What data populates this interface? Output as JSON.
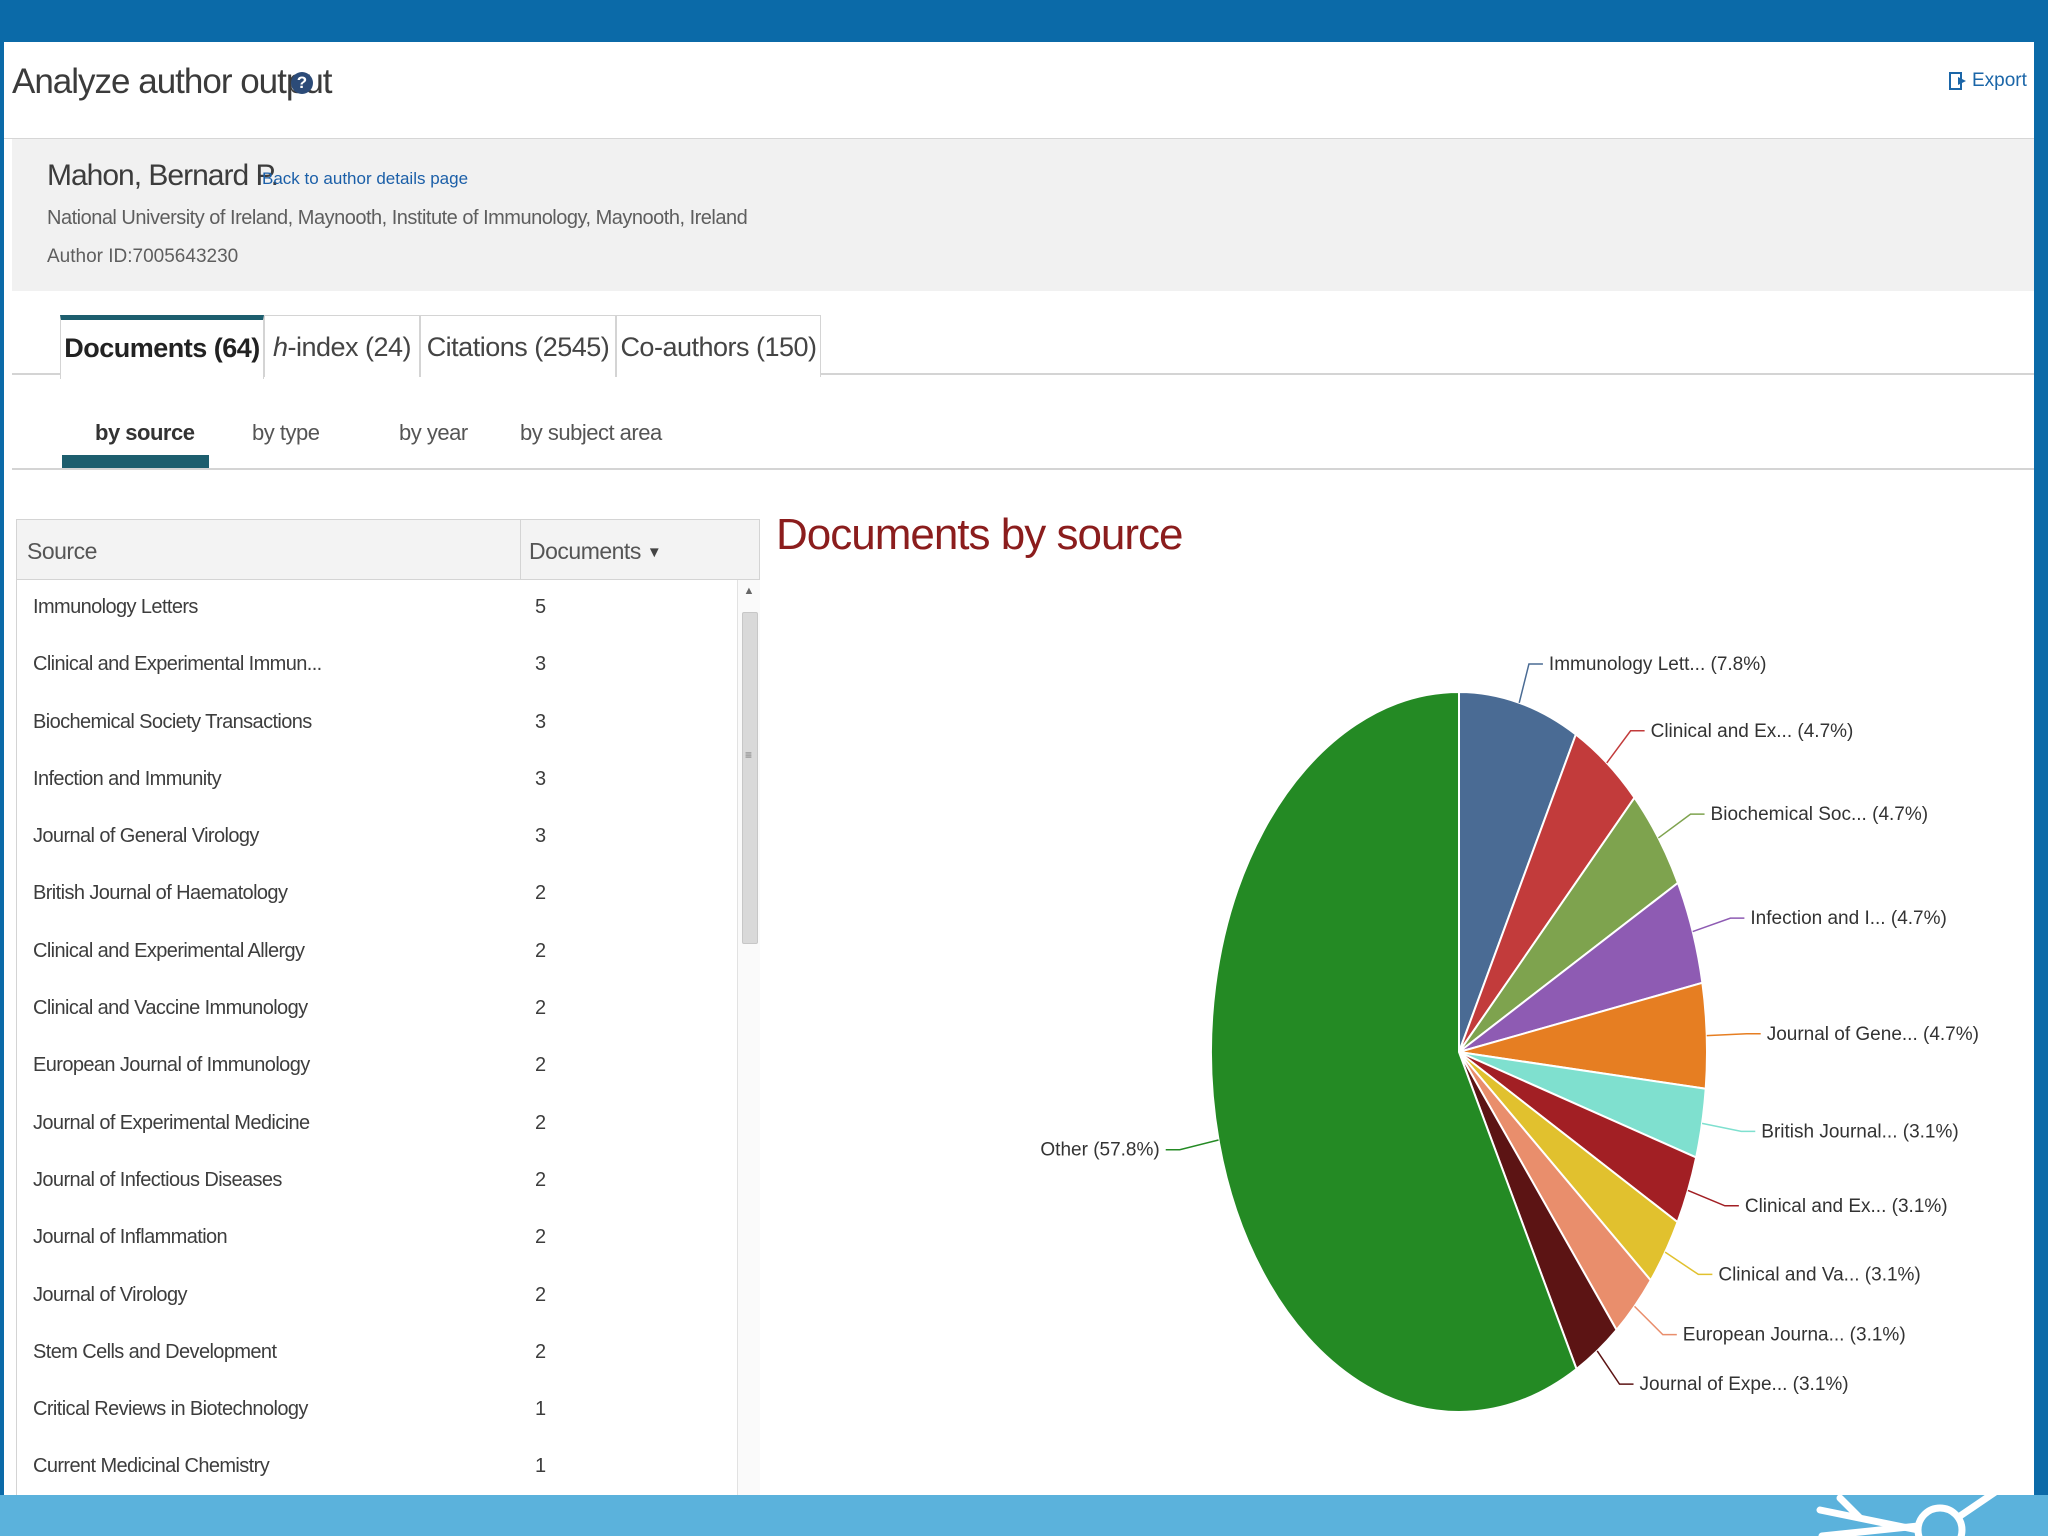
{
  "page": {
    "title": "Analyze author output",
    "export_label": "Export"
  },
  "author": {
    "name": "Mahon, Bernard P.",
    "back_link": "Back to author details page",
    "affiliation": "National University of Ireland, Maynooth, Institute of Immunology, Maynooth, Ireland",
    "author_id": "Author ID:7005643230"
  },
  "tabs": [
    {
      "label": "Documents (64)",
      "active": true
    },
    {
      "prefix": "h",
      "label": "-index (24)",
      "active": false
    },
    {
      "label": "Citations (2545)",
      "active": false
    },
    {
      "label": "Co-authors (150)",
      "active": false
    }
  ],
  "subtabs": [
    {
      "label": "by source",
      "active": true
    },
    {
      "label": "by type",
      "active": false
    },
    {
      "label": "by year",
      "active": false
    },
    {
      "label": "by subject area",
      "active": false
    }
  ],
  "table": {
    "headers": {
      "source": "Source",
      "documents": "Documents"
    },
    "rows": [
      {
        "source": "Immunology Letters",
        "documents": "5"
      },
      {
        "source": "Clinical and Experimental Immun...",
        "documents": "3"
      },
      {
        "source": "Biochemical Society Transactions",
        "documents": "3"
      },
      {
        "source": "Infection and Immunity",
        "documents": "3"
      },
      {
        "source": "Journal of General Virology",
        "documents": "3"
      },
      {
        "source": "British Journal of Haematology",
        "documents": "2"
      },
      {
        "source": "Clinical and Experimental Allergy",
        "documents": "2"
      },
      {
        "source": "Clinical and Vaccine Immunology",
        "documents": "2"
      },
      {
        "source": "European Journal of Immunology",
        "documents": "2"
      },
      {
        "source": "Journal of Experimental Medicine",
        "documents": "2"
      },
      {
        "source": "Journal of Infectious Diseases",
        "documents": "2"
      },
      {
        "source": "Journal of Inflammation",
        "documents": "2"
      },
      {
        "source": "Journal of Virology",
        "documents": "2"
      },
      {
        "source": "Stem Cells and Development",
        "documents": "2"
      },
      {
        "source": "Critical Reviews in Biotechnology",
        "documents": "1"
      },
      {
        "source": "Current Medicinal Chemistry",
        "documents": "1"
      }
    ]
  },
  "chart_data": {
    "type": "pie",
    "title": "Documents by source",
    "slices": [
      {
        "label": "Immunology Lett... (7.8%)",
        "value": 7.8,
        "color": "#4a6b94"
      },
      {
        "label": "Clinical and Ex... (4.7%)",
        "value": 4.7,
        "color": "#c23b3b"
      },
      {
        "label": "Biochemical Soc... (4.7%)",
        "value": 4.7,
        "color": "#7ea34e"
      },
      {
        "label": "Infection and I... (4.7%)",
        "value": 4.7,
        "color": "#8e5bb3"
      },
      {
        "label": "Journal of Gene... (4.7%)",
        "value": 4.7,
        "color": "#e67e22"
      },
      {
        "label": "British Journal... (3.1%)",
        "value": 3.1,
        "color": "#7fe0cf"
      },
      {
        "label": "Clinical and Ex... (3.1%)",
        "value": 3.1,
        "color": "#a21f24"
      },
      {
        "label": "Clinical and Va... (3.1%)",
        "value": 3.1,
        "color": "#e1c12e"
      },
      {
        "label": "European Journa... (3.1%)",
        "value": 3.1,
        "color": "#e98e6c"
      },
      {
        "label": "Journal of Expe... (3.1%)",
        "value": 3.1,
        "color": "#5c1414"
      },
      {
        "label": "Other (57.8%)",
        "value": 57.8,
        "color": "#248a24"
      }
    ]
  }
}
